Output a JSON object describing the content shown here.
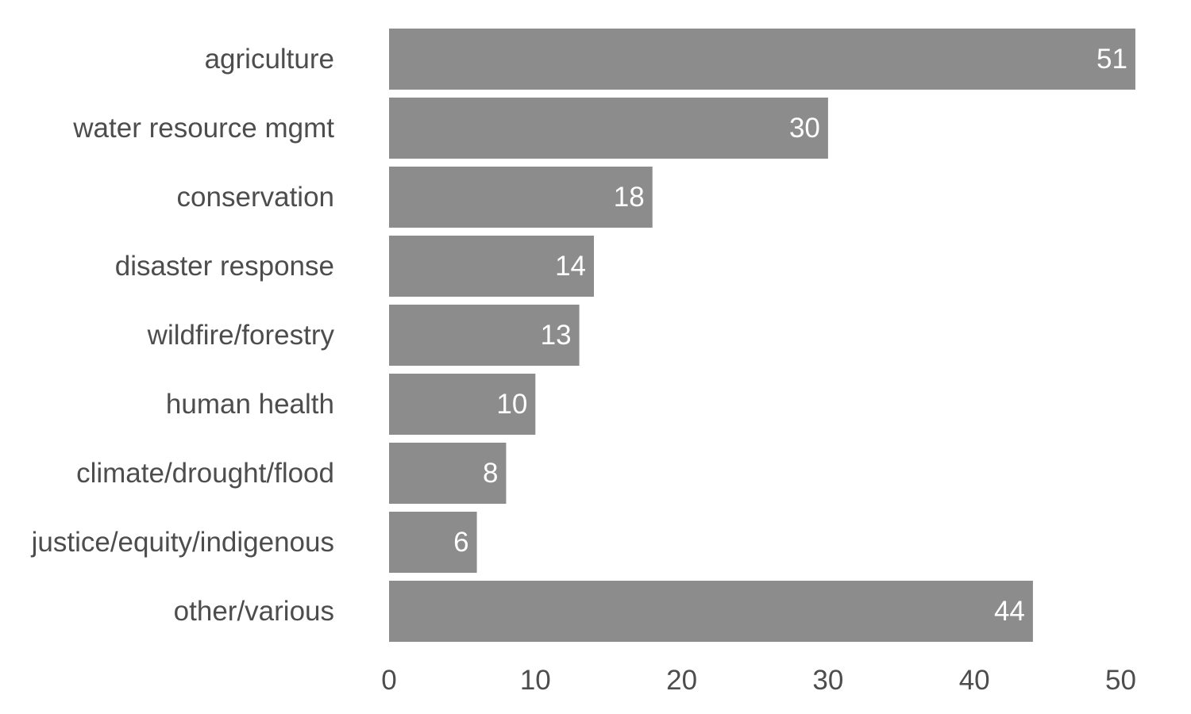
{
  "chart_data": {
    "type": "bar",
    "orientation": "horizontal",
    "categories": [
      "agriculture",
      "water resource mgmt",
      "conservation",
      "disaster response",
      "wildfire/forestry",
      "human health",
      "climate/drought/flood",
      "justice/equity/indigenous",
      "other/various"
    ],
    "values": [
      51,
      30,
      18,
      14,
      13,
      10,
      8,
      6,
      44
    ],
    "data_labels": [
      "51",
      "30",
      "18",
      "14",
      "13",
      "10",
      "8",
      "6",
      "44"
    ],
    "title": "",
    "xlabel": "",
    "ylabel": "",
    "xlim": [
      0,
      51
    ],
    "xticks": [
      0,
      10,
      20,
      30,
      40,
      50
    ],
    "xtick_labels": [
      "0",
      "10",
      "20",
      "30",
      "40",
      "50"
    ],
    "grid": false,
    "legend": "none",
    "colors": {
      "bar": "#8c8c8c",
      "category_label": "#4d4d4d",
      "tick_label": "#4d4d4d",
      "value_label": "#ffffff",
      "background": "#ffffff"
    }
  }
}
